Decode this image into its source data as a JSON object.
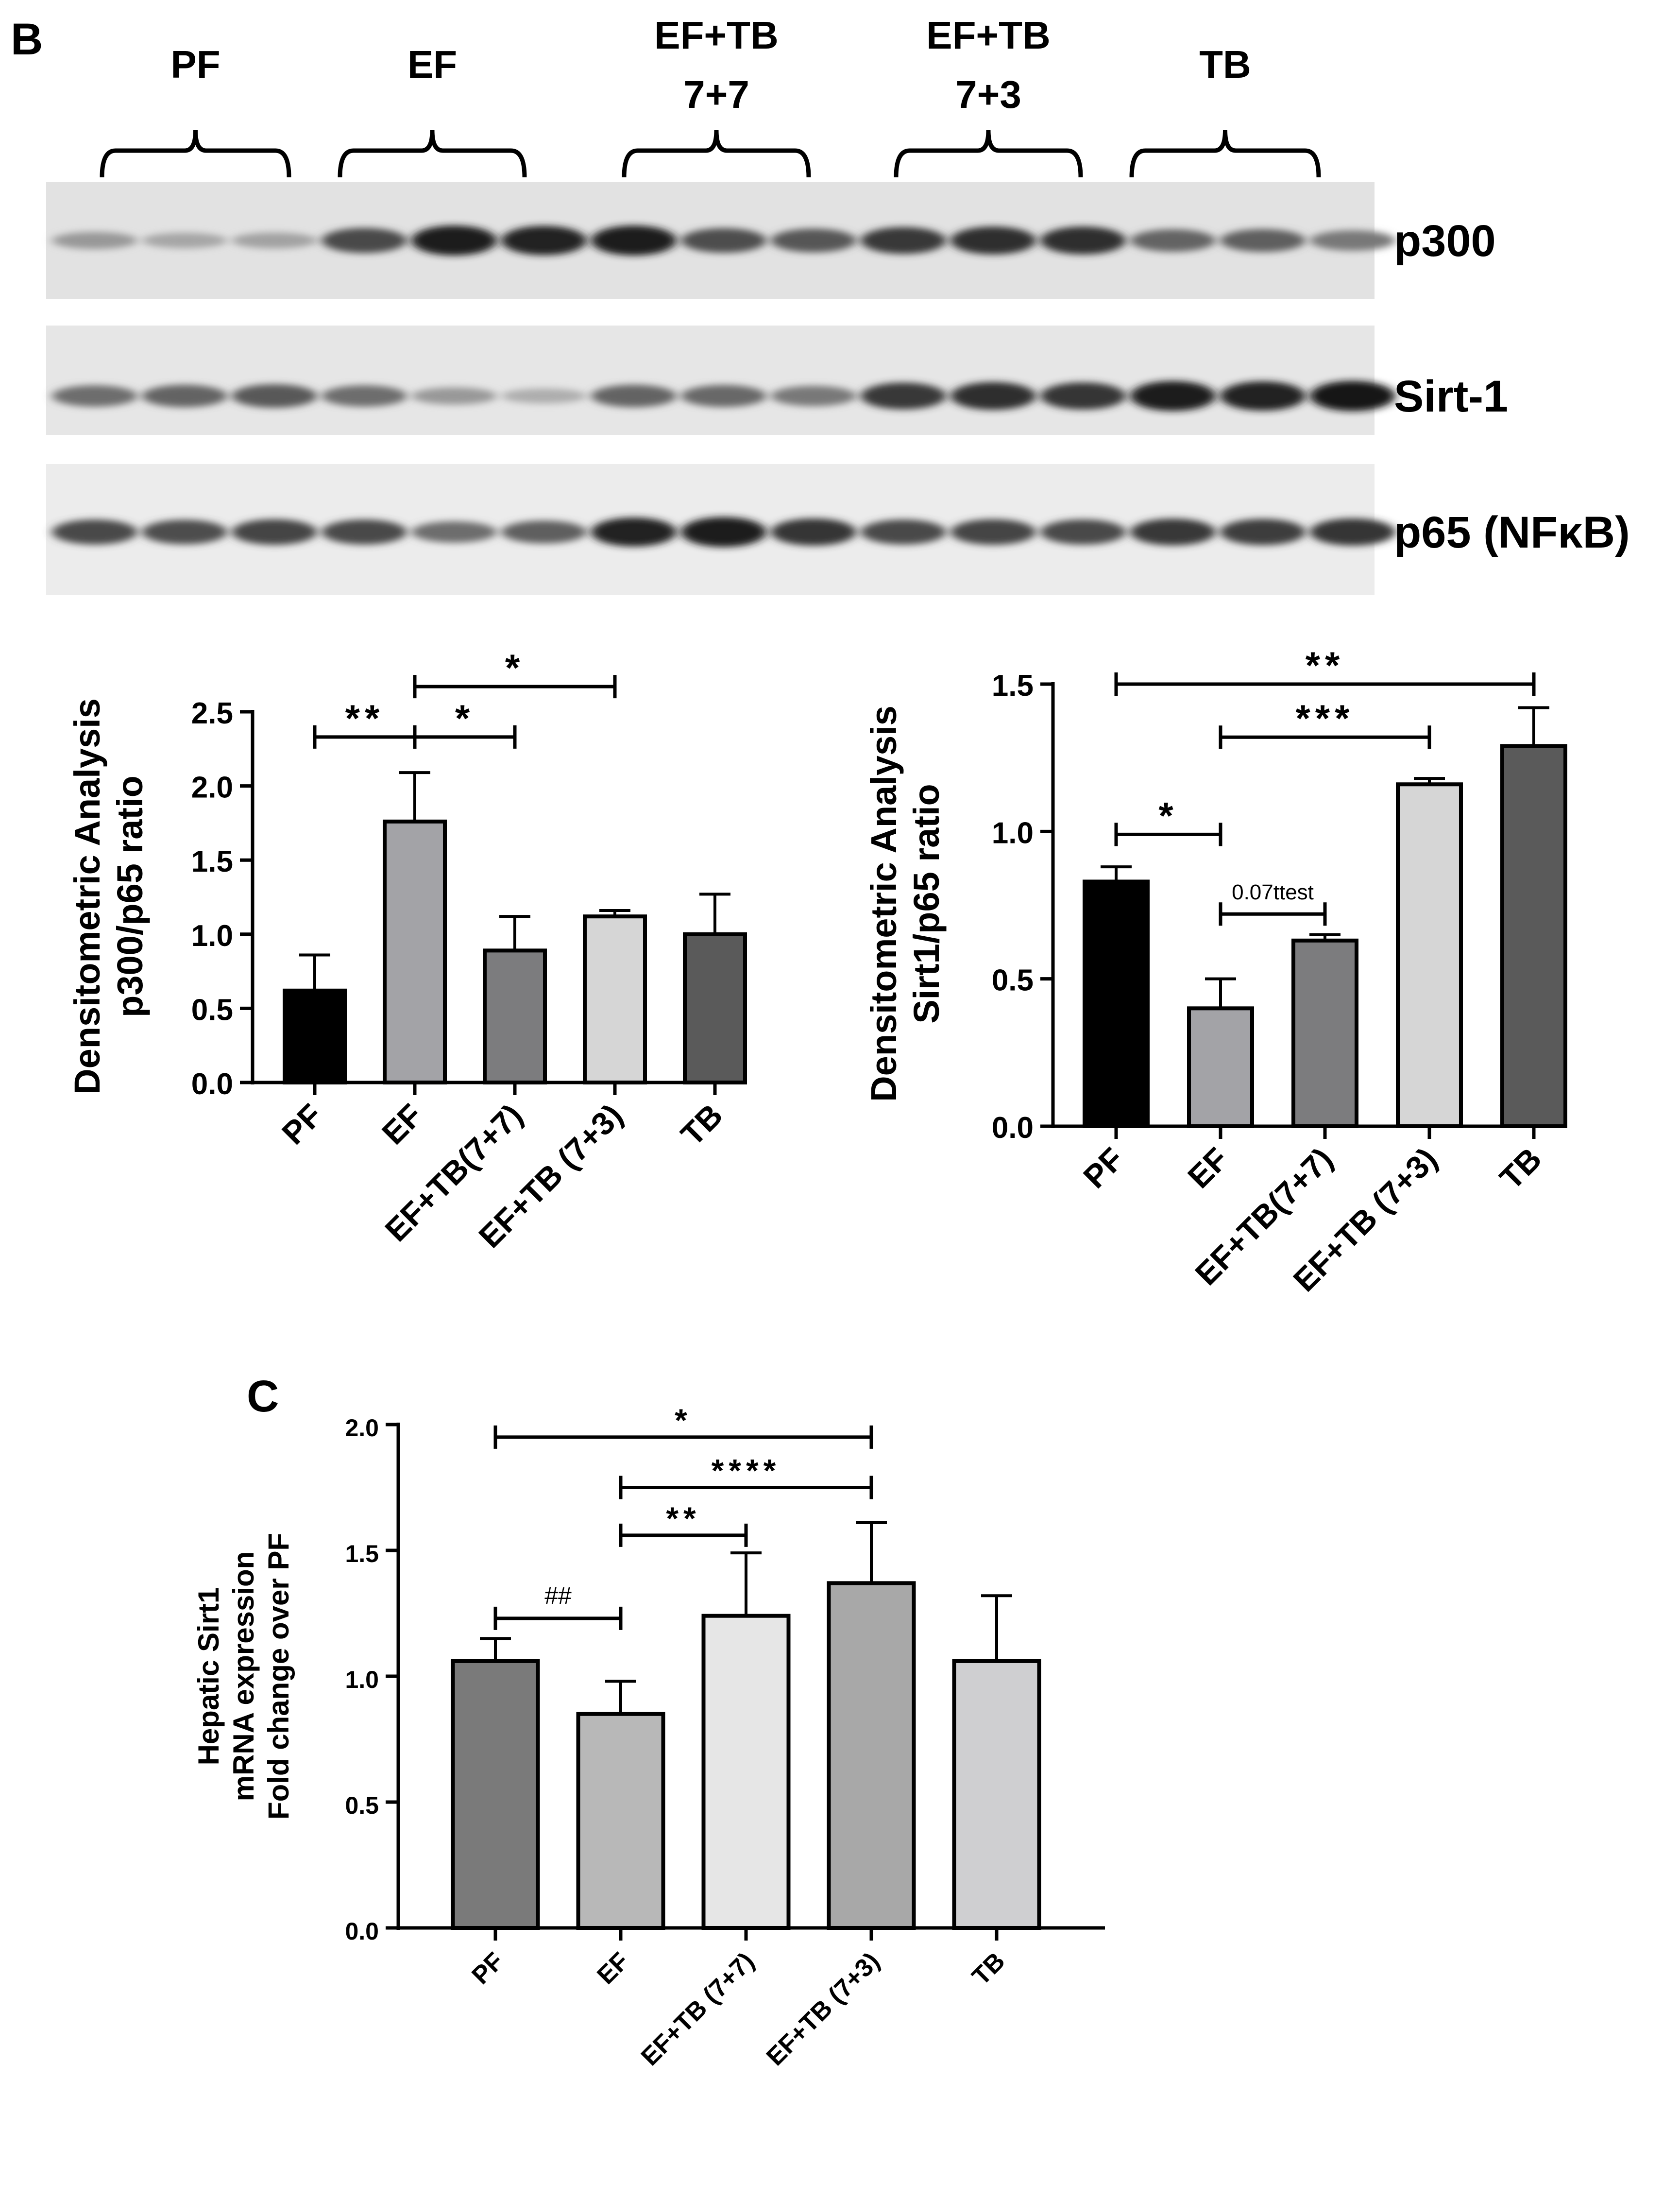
{
  "panel_labels": {
    "b": "B",
    "c": "C"
  },
  "blot": {
    "groups": [
      "PF",
      "EF",
      "EF+TB\n7+7",
      "EF+TB\n7+3",
      "TB"
    ],
    "bands": [
      {
        "label": "p300",
        "strength": [
          0.35,
          0.28,
          0.3,
          0.72,
          0.95,
          0.92,
          0.95,
          0.7,
          0.66,
          0.8,
          0.85,
          0.85,
          0.6,
          0.62,
          0.5
        ]
      },
      {
        "label": "Sirt-1",
        "strength": [
          0.55,
          0.6,
          0.65,
          0.55,
          0.35,
          0.25,
          0.6,
          0.58,
          0.5,
          0.8,
          0.85,
          0.82,
          0.95,
          0.92,
          0.96
        ]
      },
      {
        "label": "p65 (NFκB)",
        "strength": [
          0.72,
          0.7,
          0.75,
          0.72,
          0.55,
          0.62,
          0.9,
          0.95,
          0.82,
          0.72,
          0.75,
          0.73,
          0.8,
          0.78,
          0.82
        ]
      }
    ]
  },
  "colors": {
    "black": "#000000",
    "gray1": "#a3a3a7",
    "gray2": "#7c7c7e",
    "gray3": "#d6d6d6",
    "gray4": "#5a5a5a",
    "c_dark": "#7a7a7a",
    "c_mid": "#b8b8b8",
    "c_light": "#e6e6e6",
    "c_mid2": "#a8a8a8",
    "c_light2": "#cfcfd1"
  },
  "chart_data": [
    {
      "id": "p300",
      "type": "bar",
      "categories": [
        "PF",
        "EF",
        "EF+TB(7+7)",
        "EF+TB (7+3)",
        "TB"
      ],
      "values": [
        0.62,
        1.76,
        0.89,
        1.12,
        1.0
      ],
      "errors": [
        0.24,
        0.33,
        0.23,
        0.04,
        0.27
      ],
      "ylabel": [
        "Densitometric Analysis",
        "p300/p65 ratio"
      ],
      "ylim": [
        0,
        2.5
      ],
      "yticks": [
        "0.0",
        "0.5",
        "1.0",
        "1.5",
        "2.0",
        "2.5"
      ],
      "bar_colors": [
        "black",
        "gray1",
        "gray2",
        "gray3",
        "gray4"
      ],
      "annotations": [
        {
          "from": 0,
          "to": 1,
          "y": 2.33,
          "text": "**",
          "ttest": false
        },
        {
          "from": 1,
          "to": 2,
          "y": 2.33,
          "text": "*",
          "ttest": false
        },
        {
          "from": 1,
          "to": 3,
          "y": 2.67,
          "text": "*",
          "ttest": false
        }
      ]
    },
    {
      "id": "sirt1",
      "type": "bar",
      "categories": [
        "PF",
        "EF",
        "EF+TB(7+7)",
        "EF+TB (7+3)",
        "TB"
      ],
      "values": [
        0.83,
        0.4,
        0.63,
        1.16,
        1.29
      ],
      "errors": [
        0.05,
        0.1,
        0.02,
        0.02,
        0.13
      ],
      "ylabel": [
        "Densitometric Analysis",
        "Sirt1/p65 ratio"
      ],
      "ylim": [
        0,
        1.5
      ],
      "yticks": [
        "0.0",
        "0.5",
        "1.0",
        "1.5"
      ],
      "bar_colors": [
        "black",
        "gray1",
        "gray2",
        "gray3",
        "gray4"
      ],
      "annotations": [
        {
          "from": 0,
          "to": 4,
          "y": 1.5,
          "text": "**",
          "ttest": false
        },
        {
          "from": 1,
          "to": 3,
          "y": 1.32,
          "text": "***",
          "ttest": false
        },
        {
          "from": 0,
          "to": 1,
          "y": 0.99,
          "text": "*",
          "ttest": false
        },
        {
          "from": 1,
          "to": 2,
          "y": 0.72,
          "text": "0.07ttest",
          "ttest": true
        }
      ]
    },
    {
      "id": "mrna",
      "type": "bar",
      "categories": [
        "PF",
        "EF",
        "EF+TB (7+7)",
        "EF+TB (7+3)",
        "TB"
      ],
      "values": [
        1.06,
        0.85,
        1.24,
        1.37,
        1.06
      ],
      "errors": [
        0.09,
        0.13,
        0.25,
        0.24,
        0.26
      ],
      "ylabel": [
        "Hepatic Sirt1",
        "mRNA expression",
        "Fold change over PF"
      ],
      "ylim": [
        0,
        2.0
      ],
      "yticks": [
        "0.0",
        "0.5",
        "1.0",
        "1.5",
        "2.0"
      ],
      "bar_colors": [
        "c_dark",
        "c_mid",
        "c_light",
        "c_mid2",
        "c_light2"
      ],
      "annotations": [
        {
          "from": 0,
          "to": 3,
          "y": 1.95,
          "text": "*",
          "ttest": false
        },
        {
          "from": 1,
          "to": 3,
          "y": 1.75,
          "text": "****",
          "ttest": false
        },
        {
          "from": 1,
          "to": 2,
          "y": 1.56,
          "text": "**",
          "ttest": false
        },
        {
          "from": 0,
          "to": 1,
          "y": 1.23,
          "text": "##",
          "ttest": true
        }
      ]
    }
  ]
}
